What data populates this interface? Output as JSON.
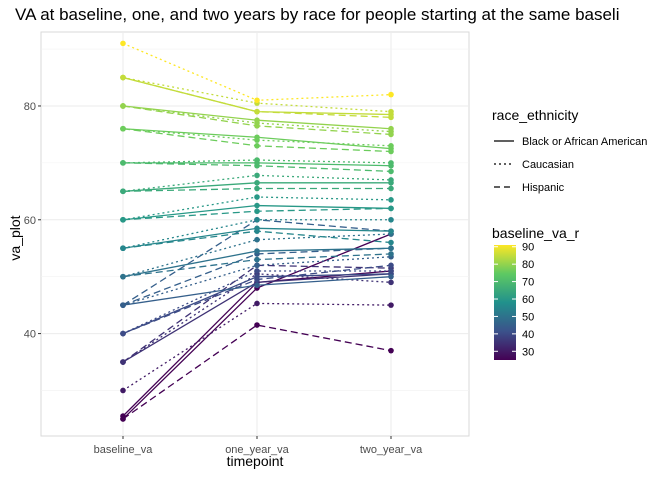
{
  "chart_data": {
    "type": "line",
    "title": "VA at baseline, one, and two years by race for people starting at the same baseli",
    "xlabel": "timepoint",
    "ylabel": "va_plot",
    "categories": [
      "baseline_va",
      "one_year_va",
      "two_year_va"
    ],
    "ylim": [
      22,
      93
    ],
    "yticks": [
      40,
      60,
      80
    ],
    "grid": true,
    "legend_position": "right",
    "legend_line": {
      "title": "race_ethnicity",
      "entries": [
        {
          "label": "Black or African American",
          "dash": "solid"
        },
        {
          "label": "Caucasian",
          "dash": "dotted"
        },
        {
          "label": "Hispanic",
          "dash": "dashed"
        }
      ]
    },
    "legend_color": {
      "title": "baseline_va_r",
      "ticks": [
        30,
        40,
        50,
        60,
        70,
        80,
        90
      ],
      "range": [
        25,
        91
      ],
      "colors": [
        "#440154",
        "#3b528b",
        "#21918c",
        "#5ec962",
        "#fde725"
      ]
    },
    "series": [
      {
        "race": "Black or African American",
        "baseline": 25,
        "values": [
          25,
          48,
          57.5
        ]
      },
      {
        "race": "Black or African American",
        "baseline": 25,
        "values": [
          25.5,
          49,
          51
        ]
      },
      {
        "race": "Hispanic",
        "baseline": 25,
        "values": [
          25,
          41.5,
          37
        ]
      },
      {
        "race": "Caucasian",
        "baseline": 30,
        "values": [
          30,
          45.3,
          45
        ]
      },
      {
        "race": "Black or African American",
        "baseline": 35,
        "values": [
          35,
          49,
          50.5
        ]
      },
      {
        "race": "Caucasian",
        "baseline": 35,
        "values": [
          35,
          50.5,
          49
        ]
      },
      {
        "race": "Hispanic",
        "baseline": 35,
        "values": [
          35,
          52,
          51.5
        ]
      },
      {
        "race": "Black or African American",
        "baseline": 40,
        "values": [
          40,
          50,
          50.5
        ]
      },
      {
        "race": "Caucasian",
        "baseline": 40,
        "values": [
          40,
          51,
          51
        ]
      },
      {
        "race": "Hispanic",
        "baseline": 40,
        "values": [
          40,
          49.5,
          52
        ]
      },
      {
        "race": "Black or African American",
        "baseline": 45,
        "values": [
          45,
          48.5,
          50
        ]
      },
      {
        "race": "Caucasian",
        "baseline": 45,
        "values": [
          45,
          52,
          53.5
        ]
      },
      {
        "race": "Hispanic",
        "baseline": 45,
        "values": [
          45,
          54,
          55
        ]
      },
      {
        "race": "Hispanic",
        "baseline": 45,
        "values": [
          45,
          60,
          58
        ]
      },
      {
        "race": "Black or African American",
        "baseline": 50,
        "values": [
          50,
          54.5,
          55
        ]
      },
      {
        "race": "Caucasian",
        "baseline": 50,
        "values": [
          50,
          56.5,
          57.5
        ]
      },
      {
        "race": "Hispanic",
        "baseline": 50,
        "values": [
          50,
          53,
          54
        ]
      },
      {
        "race": "Black or African American",
        "baseline": 55,
        "values": [
          55,
          58.5,
          58
        ]
      },
      {
        "race": "Caucasian",
        "baseline": 55,
        "values": [
          55,
          60,
          60
        ]
      },
      {
        "race": "Hispanic",
        "baseline": 55,
        "values": [
          55,
          58,
          56
        ]
      },
      {
        "race": "Black or African American",
        "baseline": 60,
        "values": [
          60,
          62.5,
          62
        ]
      },
      {
        "race": "Caucasian",
        "baseline": 60,
        "values": [
          60,
          64,
          63.5
        ]
      },
      {
        "race": "Hispanic",
        "baseline": 60,
        "values": [
          60,
          61.5,
          62
        ]
      },
      {
        "race": "Black or African American",
        "baseline": 65,
        "values": [
          65,
          66.5,
          66.5
        ]
      },
      {
        "race": "Caucasian",
        "baseline": 65,
        "values": [
          65,
          67.8,
          67
        ]
      },
      {
        "race": "Hispanic",
        "baseline": 65,
        "values": [
          65,
          65.5,
          65.5
        ]
      },
      {
        "race": "Black or African American",
        "baseline": 70,
        "values": [
          70,
          70,
          69.5
        ]
      },
      {
        "race": "Caucasian",
        "baseline": 70,
        "values": [
          70,
          70.5,
          70
        ]
      },
      {
        "race": "Hispanic",
        "baseline": 70,
        "values": [
          70,
          69.5,
          68.5
        ]
      },
      {
        "race": "Black or African American",
        "baseline": 76,
        "values": [
          76,
          74.5,
          72.5
        ]
      },
      {
        "race": "Caucasian",
        "baseline": 76,
        "values": [
          76,
          74,
          73
        ]
      },
      {
        "race": "Hispanic",
        "baseline": 76,
        "values": [
          76,
          73,
          72
        ]
      },
      {
        "race": "Black or African American",
        "baseline": 80,
        "values": [
          80,
          77.5,
          76
        ]
      },
      {
        "race": "Caucasian",
        "baseline": 80,
        "values": [
          80,
          77,
          75.5
        ]
      },
      {
        "race": "Hispanic",
        "baseline": 80,
        "values": [
          80,
          76.5,
          75
        ]
      },
      {
        "race": "Black or African American",
        "baseline": 85,
        "values": [
          85,
          79,
          78.5
        ]
      },
      {
        "race": "Caucasian",
        "baseline": 85,
        "values": [
          85,
          80.5,
          79
        ]
      },
      {
        "race": "Hispanic",
        "baseline": 85,
        "values": [
          85,
          79,
          78
        ]
      },
      {
        "race": "Caucasian",
        "baseline": 91,
        "values": [
          91,
          81,
          82
        ]
      }
    ]
  }
}
